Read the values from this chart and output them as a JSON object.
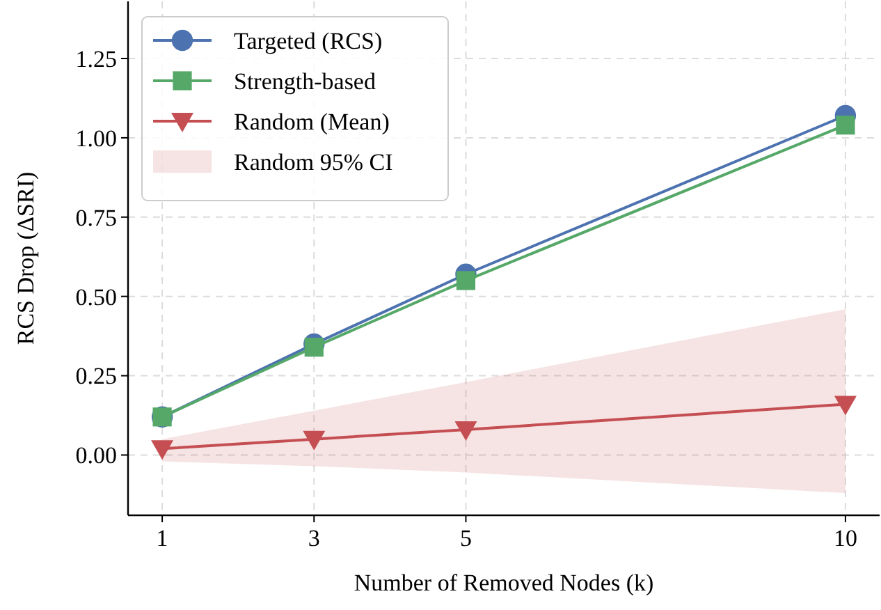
{
  "chart_data": {
    "type": "line",
    "xlabel": "Number of Removed Nodes (k)",
    "ylabel": "RCS Drop (ΔSRI)",
    "x": [
      1,
      3,
      5,
      10
    ],
    "series": [
      {
        "name": "Targeted (RCS)",
        "color": "#4c72b0",
        "marker": "circle",
        "values": [
          0.12,
          0.35,
          0.57,
          1.07
        ]
      },
      {
        "name": "Strength-based",
        "color": "#55a868",
        "marker": "square",
        "values": [
          0.12,
          0.34,
          0.55,
          1.04
        ]
      },
      {
        "name": "Random (Mean)",
        "color": "#c44e52",
        "marker": "triangle",
        "values": [
          0.02,
          0.05,
          0.08,
          0.16
        ]
      },
      {
        "name": "Random 95% CI",
        "type": "area",
        "color": "#c44e52",
        "values": [
          null,
          null,
          null,
          null
        ],
        "lower": [
          -0.02,
          -0.035,
          -0.055,
          -0.12
        ],
        "upper": [
          0.05,
          0.14,
          0.23,
          0.46
        ]
      }
    ],
    "xlim": [
      0.55,
      10.45
    ],
    "xticks": [
      1,
      3,
      5,
      10
    ],
    "ylim": [
      -0.19,
      1.43
    ],
    "yticks": [
      {
        "value": 0,
        "label": "0.00"
      },
      {
        "value": 0.25,
        "label": "0.25"
      },
      {
        "value": 0.5,
        "label": "0.50"
      },
      {
        "value": 0.75,
        "label": "0.75"
      },
      {
        "value": 1,
        "label": "1.00"
      },
      {
        "value": 1.25,
        "label": "1.25"
      }
    ],
    "grid": true,
    "legend": "top left",
    "line_style": "solid"
  }
}
